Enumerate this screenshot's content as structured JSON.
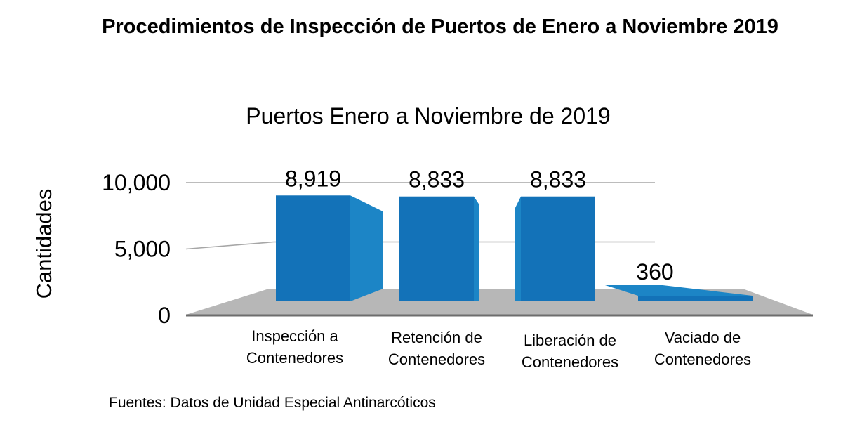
{
  "page_title": "Procedimientos de Inspección de Puertos de Enero a Noviembre 2019",
  "source": "Fuentes: Datos de Unidad Especial Antinarcóticos",
  "colors": {
    "bar_front": "#1372b8",
    "bar_side": "#1c85c6",
    "floor": "#b7b7b7",
    "floor_edge": "#6d6d6d",
    "gridline": "#a6a6a6"
  },
  "chart_data": {
    "type": "bar",
    "title": "Puertos Enero a Noviembre de 2019",
    "ylabel": "Cantidades",
    "xlabel": "",
    "categories": [
      [
        "Inspección a",
        "Contenedores"
      ],
      [
        "Retención de",
        "Contenedores"
      ],
      [
        "Liberación de",
        "Contenedores"
      ],
      [
        "Vaciado de",
        "Contenedores"
      ]
    ],
    "values": [
      8919,
      8833,
      8833,
      360
    ],
    "data_labels": [
      "8,919",
      "8,833",
      "8,833",
      "360"
    ],
    "y_ticks": [
      {
        "value": 0,
        "label": "0"
      },
      {
        "value": 5000,
        "label": "5,000"
      },
      {
        "value": 10000,
        "label": "10,000"
      }
    ],
    "ylim": [
      0,
      10000
    ],
    "grid": true,
    "three_d": true
  }
}
